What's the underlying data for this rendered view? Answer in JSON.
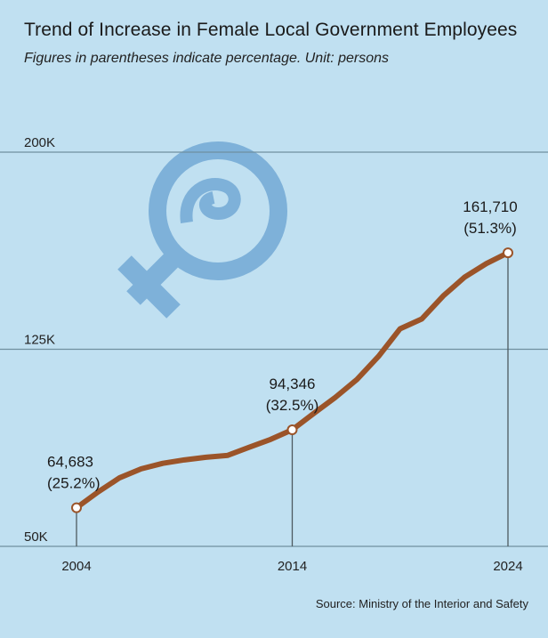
{
  "chart_data": {
    "type": "line",
    "title": "Trend of Increase in Female Local Government Employees",
    "subtitle": "Figures in parentheses indicate percentage. Unit: persons",
    "source": "Source: Ministry of the Interior and Safety",
    "xlabel": "",
    "ylabel": "",
    "ylim": [
      50000,
      200000
    ],
    "y_ticks": [
      {
        "value": 50000,
        "label": "50K"
      },
      {
        "value": 125000,
        "label": "125K"
      },
      {
        "value": 200000,
        "label": "200K"
      }
    ],
    "x_ticks": [
      {
        "value": 2004,
        "label": "2004"
      },
      {
        "value": 2014,
        "label": "2014"
      },
      {
        "value": 2024,
        "label": "2024"
      }
    ],
    "grid": true,
    "series": [
      {
        "name": "Female local government employees",
        "color": "#9b5429",
        "x": [
          2004,
          2005,
          2006,
          2007,
          2008,
          2009,
          2010,
          2011,
          2012,
          2013,
          2014,
          2015,
          2016,
          2017,
          2018,
          2019,
          2020,
          2021,
          2022,
          2023,
          2024
        ],
        "values": [
          64683,
          70700,
          76100,
          79500,
          81600,
          82900,
          83900,
          84600,
          87700,
          90700,
          94346,
          100600,
          106700,
          113500,
          122300,
          132800,
          136500,
          145300,
          152500,
          157600,
          161710
        ]
      }
    ],
    "annotations": [
      {
        "x": 2004,
        "value": 64683,
        "line1": "64,683",
        "line2": "(25.2%)"
      },
      {
        "x": 2014,
        "value": 94346,
        "line1": "94,346",
        "line2": "(32.5%)"
      },
      {
        "x": 2024,
        "value": 161710,
        "line1": "161,710",
        "line2": "(51.3%)"
      }
    ],
    "colors": {
      "background": "#c0e0f1",
      "symbol": "#7eb1d9",
      "grid": "#6f8fa0"
    }
  }
}
